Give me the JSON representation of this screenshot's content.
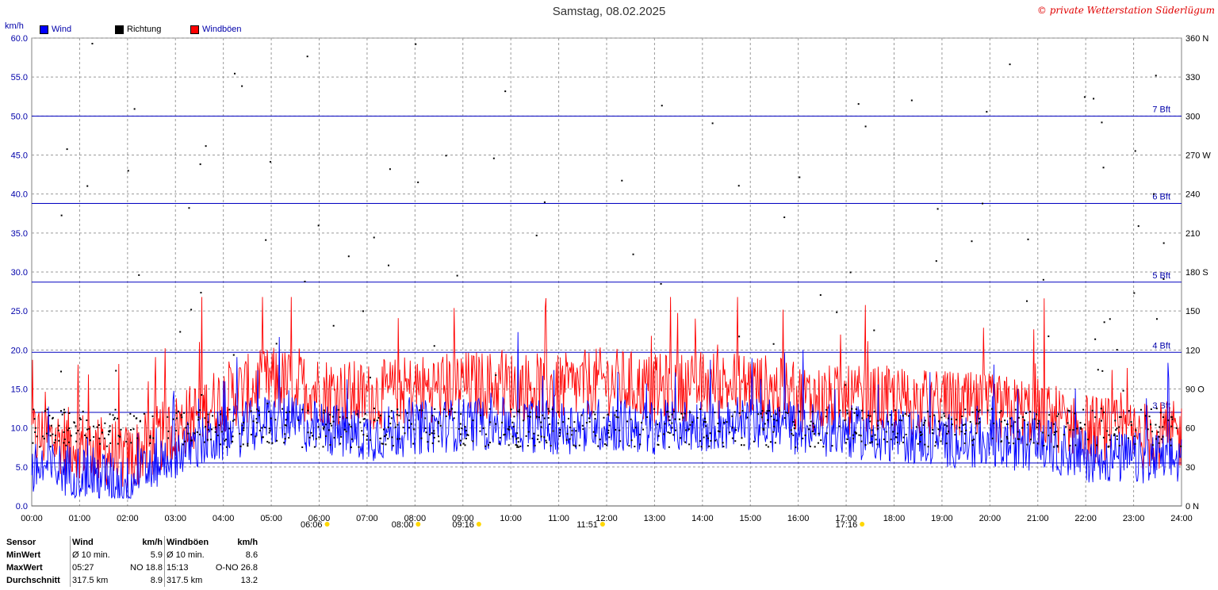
{
  "header": {
    "title": "Samstag, 08.02.2025",
    "copyright": "© private Wetterstation Süderlügum"
  },
  "legend": {
    "unit": "km/h",
    "items": [
      {
        "label": "Wind",
        "color": "#0000ff"
      },
      {
        "label": "Richtung",
        "color": "#000000"
      },
      {
        "label": "Windböen",
        "color": "#ff0000"
      }
    ]
  },
  "chart_data": {
    "type": "line",
    "title": "Samstag, 08.02.2025",
    "ylabel": "km/h",
    "ylim": [
      0,
      60
    ],
    "y_ticks": [
      "0.0",
      "5.0",
      "10.0",
      "15.0",
      "20.0",
      "25.0",
      "30.0",
      "35.0",
      "40.0",
      "45.0",
      "50.0",
      "55.0",
      "60.0"
    ],
    "y2lim": [
      0,
      360
    ],
    "y2_ticks": [
      "0 N",
      "30",
      "60",
      "90 O",
      "120",
      "150",
      "180 S",
      "210",
      "240",
      "270 W",
      "300",
      "330",
      "360 N"
    ],
    "x_ticks": [
      "00:00",
      "01:00",
      "02:00",
      "03:00",
      "04:00",
      "05:00",
      "06:00",
      "07:00",
      "08:00",
      "09:00",
      "10:00",
      "11:00",
      "12:00",
      "13:00",
      "14:00",
      "15:00",
      "16:00",
      "17:00",
      "18:00",
      "19:00",
      "20:00",
      "21:00",
      "22:00",
      "23:00",
      "24:00"
    ],
    "beaufort_lines": [
      {
        "value": 5.5,
        "label": ""
      },
      {
        "value": 12.0,
        "label": "3 Bft"
      },
      {
        "value": 19.7,
        "label": "4 Bft"
      },
      {
        "value": 28.7,
        "label": "5 Bft"
      },
      {
        "value": 38.8,
        "label": "6 Bft"
      },
      {
        "value": 50.0,
        "label": "7 Bft"
      }
    ],
    "grid": true,
    "series": [
      {
        "name": "Wind",
        "color": "#0000ff",
        "hours": [
          0,
          1,
          2,
          3,
          4,
          5,
          6,
          7,
          8,
          9,
          10,
          11,
          12,
          13,
          14,
          15,
          16,
          17,
          18,
          19,
          20,
          21,
          22,
          23,
          24
        ],
        "values": [
          5.0,
          4.5,
          3.0,
          7.0,
          9.0,
          11.0,
          10.0,
          9.0,
          10.0,
          10.5,
          10.5,
          10.0,
          10.5,
          10.0,
          10.5,
          10.5,
          10.0,
          9.5,
          9.0,
          8.5,
          8.0,
          8.0,
          6.5,
          6.0,
          6.0
        ]
      },
      {
        "name": "Windböen",
        "color": "#ff0000",
        "hours": [
          0,
          1,
          2,
          3,
          4,
          5,
          6,
          7,
          8,
          9,
          10,
          11,
          12,
          13,
          14,
          15,
          16,
          17,
          18,
          19,
          20,
          21,
          22,
          23,
          24
        ],
        "values": [
          9.0,
          8.0,
          6.0,
          10.0,
          14.0,
          16.0,
          15.0,
          14.0,
          15.0,
          15.5,
          15.5,
          15.0,
          16.0,
          15.0,
          15.5,
          15.5,
          14.0,
          13.5,
          13.5,
          13.0,
          12.5,
          12.0,
          10.0,
          9.0,
          9.0
        ]
      },
      {
        "name": "Richtung",
        "color": "#000000",
        "unit": "deg",
        "typical": 60
      }
    ]
  },
  "markers": [
    {
      "time": "09:16",
      "icon": "sun-dot-icon",
      "color": "#ffd700"
    },
    {
      "time": "06:06",
      "icon": "sunrise-icon",
      "color": "#ffd700"
    },
    {
      "time": "08:00",
      "icon": "sun-dot-icon",
      "color": "#ffd700"
    },
    {
      "time": "11:51",
      "icon": "sunpeak-icon",
      "color": "#ffd700"
    },
    {
      "time": "17:16",
      "icon": "sunset-icon",
      "color": "#ffd700"
    }
  ],
  "stats": {
    "headers": [
      "Sensor",
      "Wind",
      "km/h",
      "Windböen",
      "km/h"
    ],
    "rows": [
      {
        "label": "MinWert",
        "w_time": "Ø 10 min.",
        "w_dir": "",
        "w_val": "5.9",
        "g_time": "Ø 10 min.",
        "g_dir": "",
        "g_val": "8.6"
      },
      {
        "label": "MaxWert",
        "w_time": "05:27",
        "w_dir": "NO",
        "w_val": "18.8",
        "g_time": "15:13",
        "g_dir": "O-NO",
        "g_val": "26.8"
      },
      {
        "label": "Durchschnitt",
        "w_time": "317.5 km",
        "w_dir": "",
        "w_val": "8.9",
        "g_time": "317.5 km",
        "g_dir": "",
        "g_val": "13.2"
      }
    ]
  }
}
